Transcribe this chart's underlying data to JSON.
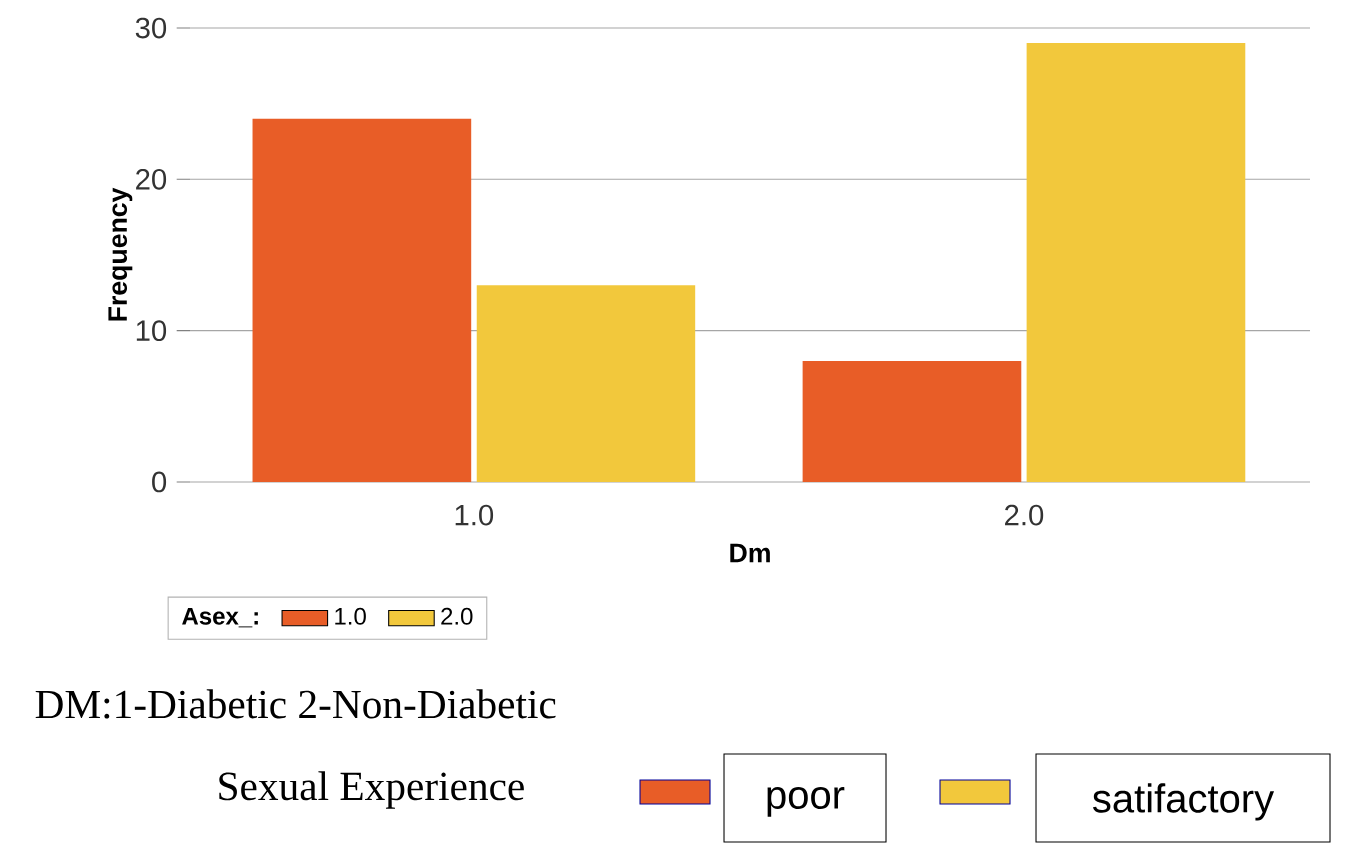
{
  "chart_data": {
    "type": "bar",
    "categories": [
      "1.0",
      "2.0"
    ],
    "series": [
      {
        "name": "1.0",
        "color": "#e85d27",
        "values": [
          24,
          8
        ]
      },
      {
        "name": "2.0",
        "color": "#f2c83c",
        "values": [
          13,
          29
        ]
      }
    ],
    "xlabel": "Dm",
    "ylabel": "Frequency",
    "legend_title": "Asex_:",
    "ylim": [
      0,
      30
    ],
    "yticks": [
      0,
      10,
      20,
      30
    ],
    "grid": "y",
    "legend": "bottom left",
    "annotations": [
      "DM:1-Diabetic 2-Non-Diabetic",
      "Sexual Experience",
      "poor",
      "satifactory"
    ]
  }
}
